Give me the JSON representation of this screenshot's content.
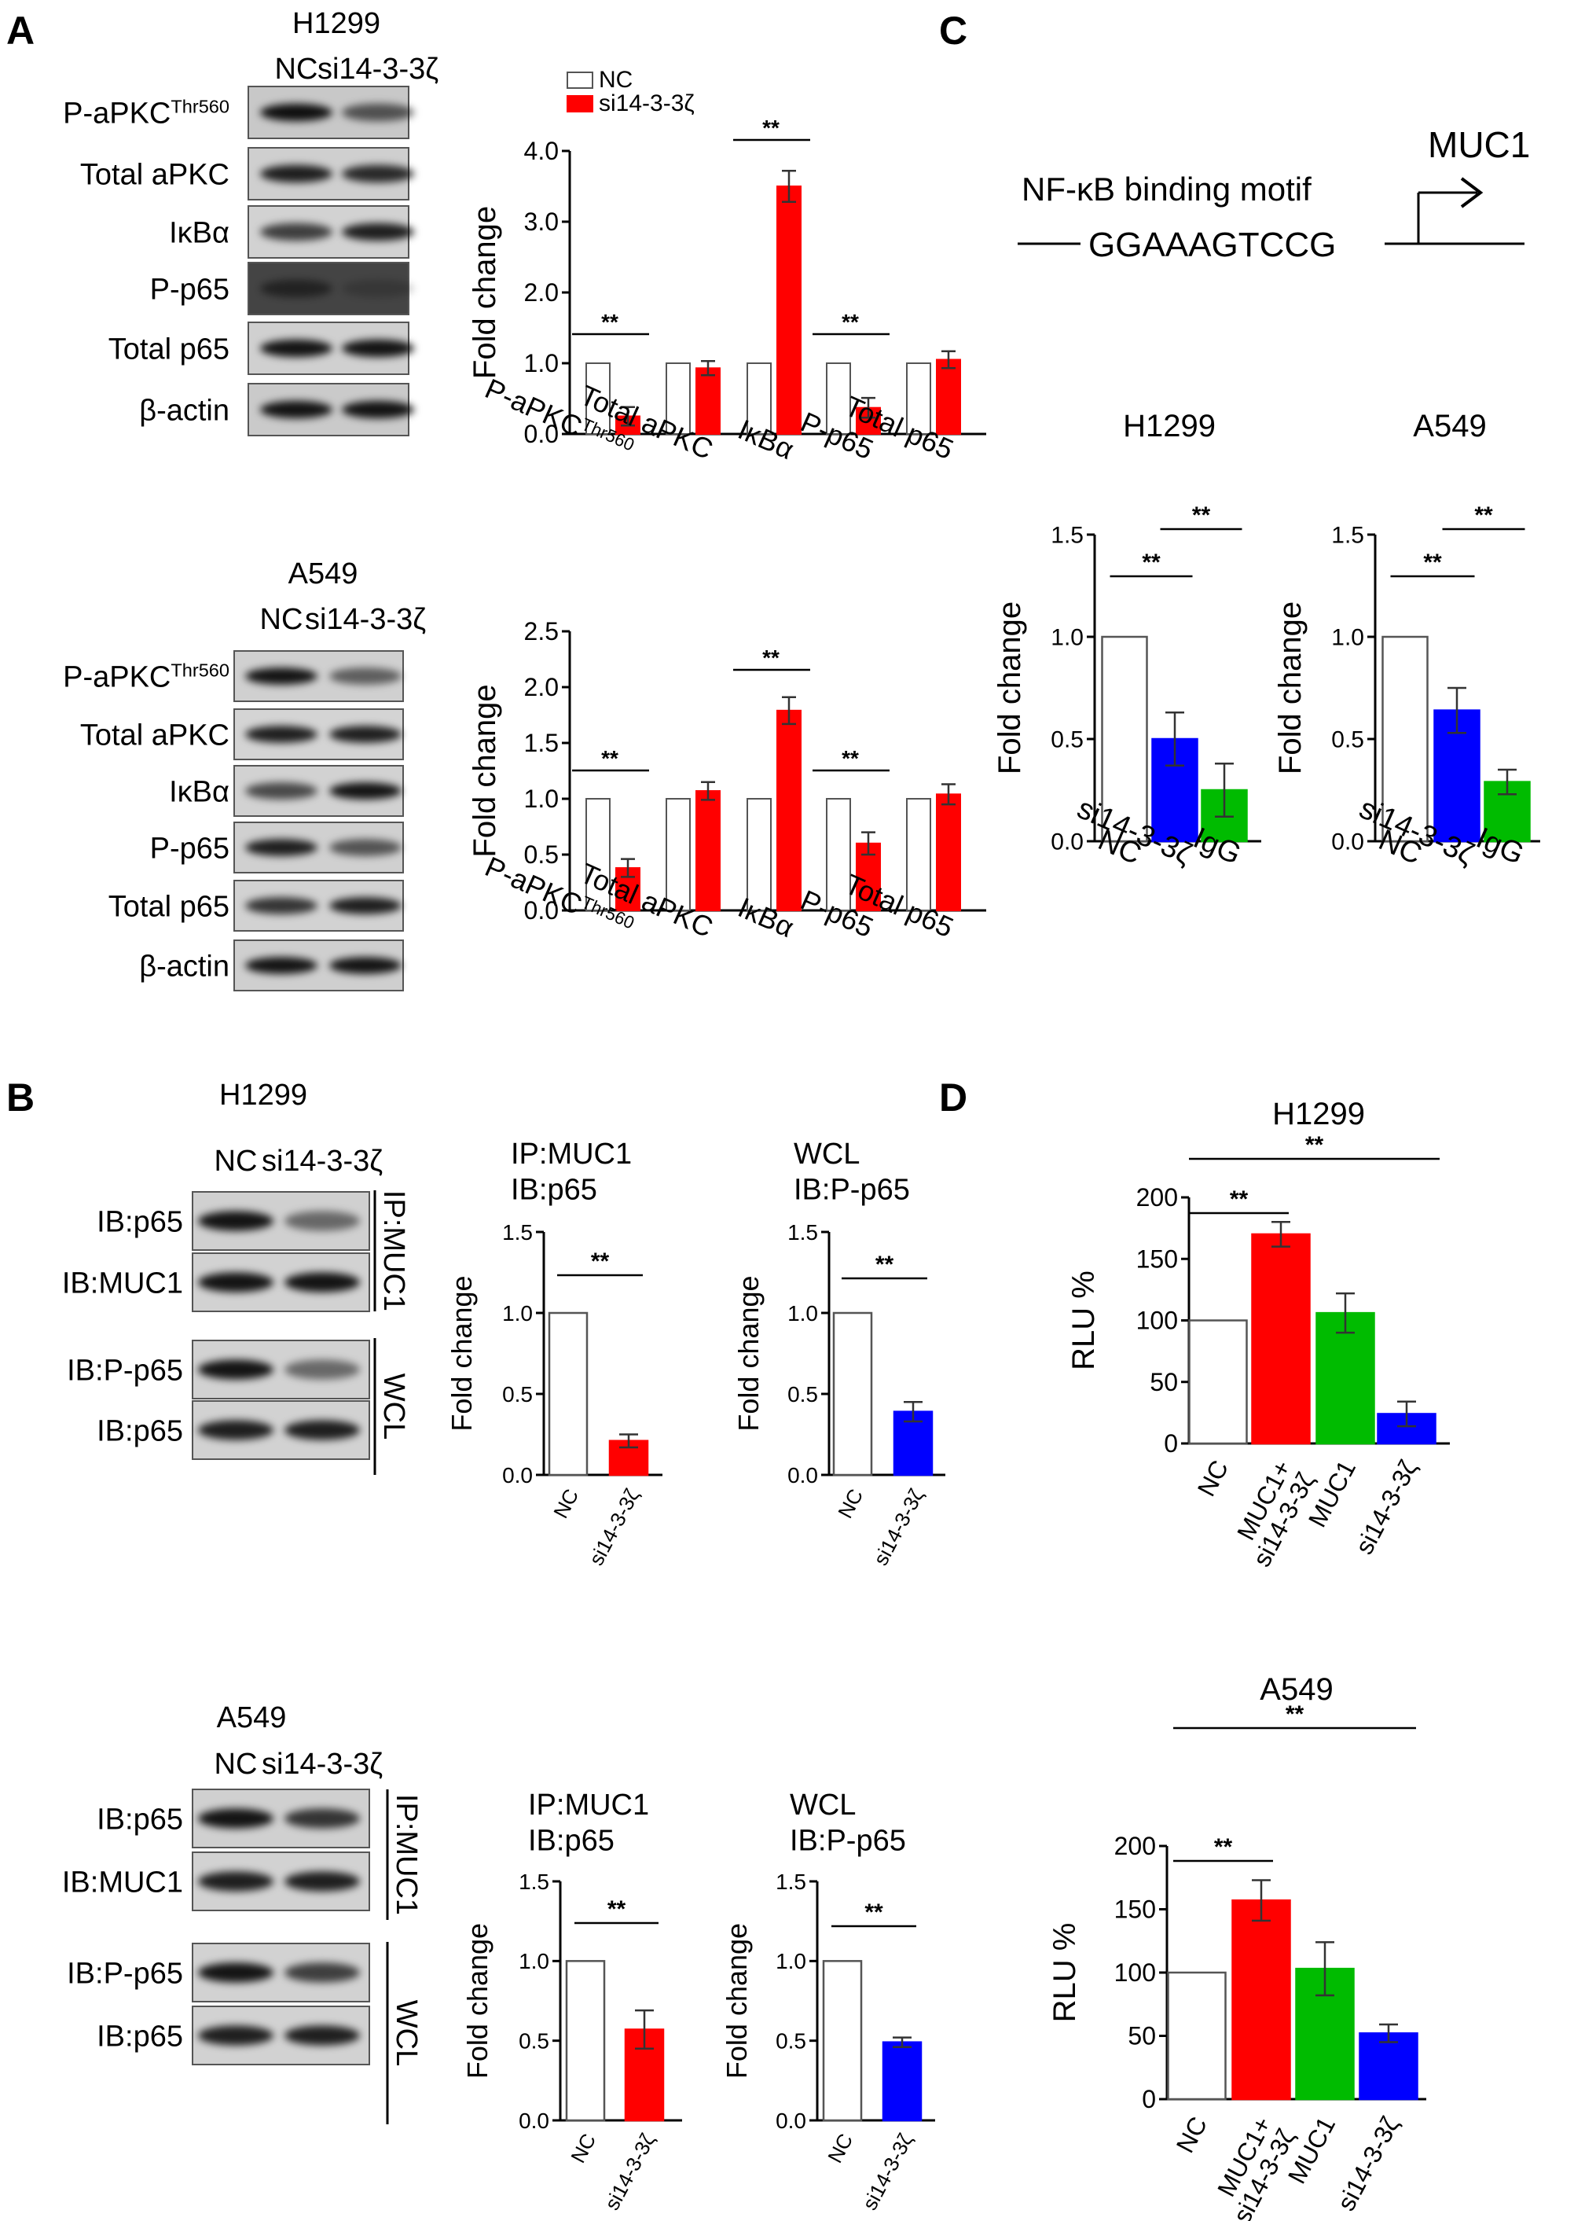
{
  "panels": {
    "A": {
      "label": "A",
      "blots": [
        {
          "cell_line": "H1299",
          "lanes": [
            "NC",
            "si14-3-3ζ"
          ],
          "rows": [
            {
              "label": "P-aPKC",
              "sup": "Thr560"
            },
            {
              "label": "Total aPKC",
              "sup": ""
            },
            {
              "label": "IκBα",
              "sup": ""
            },
            {
              "label": "P-p65",
              "sup": ""
            },
            {
              "label": "Total p65",
              "sup": ""
            },
            {
              "label": "β-actin",
              "sup": ""
            }
          ]
        },
        {
          "cell_line": "A549",
          "lanes": [
            "NC",
            "si14-3-3ζ"
          ],
          "rows": [
            {
              "label": "P-aPKC",
              "sup": "Thr560"
            },
            {
              "label": "Total aPKC",
              "sup": ""
            },
            {
              "label": "IκBα",
              "sup": ""
            },
            {
              "label": "P-p65",
              "sup": ""
            },
            {
              "label": "Total p65",
              "sup": ""
            },
            {
              "label": "β-actin",
              "sup": ""
            }
          ]
        }
      ]
    },
    "B": {
      "label": "B",
      "blots": [
        {
          "cell_line": "H1299",
          "lanes": [
            "NC",
            "si14-3-3ζ"
          ],
          "rows": [
            "IB:p65",
            "IB:MUC1",
            "IB:P-p65",
            "IB:p65"
          ],
          "groups": [
            "IP:MUC1",
            "WCL"
          ]
        },
        {
          "cell_line": "A549",
          "lanes": [
            "NC",
            "si14-3-3ζ"
          ],
          "rows": [
            "IB:p65",
            "IB:MUC1",
            "IB:P-p65",
            "IB:p65"
          ],
          "groups": [
            "IP:MUC1",
            "WCL"
          ]
        }
      ]
    },
    "C": {
      "label": "C",
      "motif_label": "NF-κB binding motif",
      "motif_seq": "GGAAAGTCCG",
      "gene": "MUC1"
    },
    "D": {
      "label": "D"
    }
  },
  "chart_data": [
    {
      "id": "A-H1299",
      "type": "bar",
      "legend": [
        "NC",
        "si14-3-3ζ"
      ],
      "legend_position": "top-left",
      "ylabel": "Fold change",
      "ylim": [
        0,
        4.0
      ],
      "yticks": [
        "0.0",
        "1.0",
        "2.0",
        "3.0",
        "4.0"
      ],
      "categories": [
        {
          "main": "P-aPKC",
          "sup": "Thr560"
        },
        {
          "main": "Total aPKC",
          "sup": ""
        },
        {
          "main": "IκBα",
          "sup": ""
        },
        {
          "main": "P-p65",
          "sup": ""
        },
        {
          "main": "Total p65",
          "sup": ""
        }
      ],
      "series": [
        {
          "name": "NC",
          "color": "#ffffff",
          "values": [
            1.0,
            1.0,
            1.0,
            1.0,
            1.0
          ],
          "errors": [
            0,
            0,
            0,
            0,
            0
          ]
        },
        {
          "name": "si14-3-3ζ",
          "color": "#ff0000",
          "values": [
            0.25,
            0.93,
            3.5,
            0.37,
            1.05
          ],
          "errors": [
            0.13,
            0.1,
            0.22,
            0.14,
            0.12
          ]
        }
      ],
      "significance": [
        {
          "category": 0,
          "label": "**"
        },
        {
          "category": 2,
          "label": "**"
        },
        {
          "category": 3,
          "label": "**"
        }
      ]
    },
    {
      "id": "A-A549",
      "type": "bar",
      "ylabel": "Fold change",
      "ylim": [
        0,
        2.5
      ],
      "yticks": [
        "0.0",
        "0.5",
        "1.0",
        "1.5",
        "2.0",
        "2.5"
      ],
      "categories": [
        {
          "main": "P-aPKC",
          "sup": "Thr560"
        },
        {
          "main": "Total aPKC",
          "sup": ""
        },
        {
          "main": "IκBα",
          "sup": ""
        },
        {
          "main": "P-p65",
          "sup": ""
        },
        {
          "main": "Total p65",
          "sup": ""
        }
      ],
      "series": [
        {
          "name": "NC",
          "color": "#ffffff",
          "values": [
            1.0,
            1.0,
            1.0,
            1.0,
            1.0
          ],
          "errors": [
            0,
            0,
            0,
            0,
            0
          ]
        },
        {
          "name": "si14-3-3ζ",
          "color": "#ff0000",
          "values": [
            0.38,
            1.07,
            1.79,
            0.6,
            1.04
          ],
          "errors": [
            0.08,
            0.08,
            0.12,
            0.1,
            0.09
          ]
        }
      ],
      "significance": [
        {
          "category": 0,
          "label": "**"
        },
        {
          "category": 2,
          "label": "**"
        },
        {
          "category": 3,
          "label": "**"
        }
      ]
    },
    {
      "id": "B-H1299-IP",
      "type": "bar",
      "title": [
        "IP:MUC1",
        "IB:p65"
      ],
      "ylabel": "Fold change",
      "ylim": [
        0,
        1.5
      ],
      "yticks": [
        "0.0",
        "0.5",
        "1.0",
        "1.5"
      ],
      "categories": [
        "NC",
        "si14-3-3ζ"
      ],
      "values": [
        1.0,
        0.21
      ],
      "errors": [
        0,
        0.04
      ],
      "colors": [
        "#ffffff",
        "#ff0000"
      ],
      "significance": [
        {
          "from": 0,
          "to": 1,
          "label": "**"
        }
      ]
    },
    {
      "id": "B-H1299-WCL",
      "type": "bar",
      "title": [
        "WCL",
        "IB:P-p65"
      ],
      "ylabel": "Fold change",
      "ylim": [
        0,
        1.5
      ],
      "yticks": [
        "0.0",
        "0.5",
        "1.0",
        "1.5"
      ],
      "categories": [
        "NC",
        "si14-3-3ζ"
      ],
      "values": [
        1.0,
        0.39
      ],
      "errors": [
        0,
        0.06
      ],
      "colors": [
        "#ffffff",
        "#0000ff"
      ],
      "significance": [
        {
          "from": 0,
          "to": 1,
          "label": "**"
        }
      ]
    },
    {
      "id": "B-A549-IP",
      "type": "bar",
      "title": [
        "IP:MUC1",
        "IB:p65"
      ],
      "ylabel": "Fold change",
      "ylim": [
        0,
        1.5
      ],
      "yticks": [
        "0.0",
        "0.5",
        "1.0",
        "1.5"
      ],
      "categories": [
        "NC",
        "si14-3-3ζ"
      ],
      "values": [
        1.0,
        0.57
      ],
      "errors": [
        0,
        0.12
      ],
      "colors": [
        "#ffffff",
        "#ff0000"
      ],
      "significance": [
        {
          "from": 0,
          "to": 1,
          "label": "**"
        }
      ]
    },
    {
      "id": "B-A549-WCL",
      "type": "bar",
      "title": [
        "WCL",
        "IB:P-p65"
      ],
      "ylabel": "Fold change",
      "ylim": [
        0,
        1.5
      ],
      "yticks": [
        "0.0",
        "0.5",
        "1.0",
        "1.5"
      ],
      "categories": [
        "NC",
        "si14-3-3ζ"
      ],
      "values": [
        1.0,
        0.49
      ],
      "errors": [
        0,
        0.03
      ],
      "colors": [
        "#ffffff",
        "#0000ff"
      ],
      "significance": [
        {
          "from": 0,
          "to": 1,
          "label": "**"
        }
      ]
    },
    {
      "id": "C-H1299",
      "type": "bar",
      "title": [
        "H1299"
      ],
      "ylabel": "Fold change",
      "ylim": [
        0,
        1.5
      ],
      "yticks": [
        "0.0",
        "0.5",
        "1.0",
        "1.5"
      ],
      "categories": [
        "NC",
        "si14-3-3ζ",
        "IgG"
      ],
      "values": [
        1.0,
        0.5,
        0.25
      ],
      "errors": [
        0,
        0.13,
        0.13
      ],
      "colors": [
        "#ffffff",
        "#0000ff",
        "#00bb00"
      ],
      "significance": [
        {
          "from": 0,
          "to": 1,
          "label": "**"
        },
        {
          "from": 1,
          "to": 2,
          "label": "**"
        }
      ]
    },
    {
      "id": "C-A549",
      "type": "bar",
      "title": [
        "A549"
      ],
      "ylabel": "Fold change",
      "ylim": [
        0,
        1.5
      ],
      "yticks": [
        "0.0",
        "0.5",
        "1.0",
        "1.5"
      ],
      "categories": [
        "NC",
        "si14-3-3ζ",
        "IgG"
      ],
      "values": [
        1.0,
        0.64,
        0.29
      ],
      "errors": [
        0,
        0.11,
        0.06
      ],
      "colors": [
        "#ffffff",
        "#0000ff",
        "#00bb00"
      ],
      "significance": [
        {
          "from": 0,
          "to": 1,
          "label": "**"
        },
        {
          "from": 1,
          "to": 2,
          "label": "**"
        }
      ]
    },
    {
      "id": "D-H1299",
      "type": "bar",
      "title": [
        "H1299"
      ],
      "ylabel": "RLU %",
      "ylim": [
        0,
        200
      ],
      "yticks": [
        "0",
        "50",
        "100",
        "150",
        "200"
      ],
      "categories": [
        "NC",
        "MUC1+\nsi14-3-3ζ",
        "MUC1",
        "si14-3-3ζ"
      ],
      "values": [
        100,
        170,
        106,
        24
      ],
      "errors": [
        0,
        10,
        16,
        10
      ],
      "colors": [
        "#ffffff",
        "#ff0000",
        "#00bb00",
        "#0000ff"
      ],
      "significance": [
        {
          "from": 0,
          "to": 1,
          "label": "**"
        },
        {
          "from": 0,
          "to": 3,
          "label": "**"
        }
      ]
    },
    {
      "id": "D-A549",
      "type": "bar",
      "title": [
        "A549"
      ],
      "ylabel": "RLU %",
      "ylim": [
        0,
        200
      ],
      "yticks": [
        "0",
        "50",
        "100",
        "150",
        "200"
      ],
      "categories": [
        "NC",
        "MUC1+\nsi14-3-3ζ",
        "MUC1",
        "si14-3-3ζ"
      ],
      "values": [
        100,
        157,
        103,
        52
      ],
      "errors": [
        0,
        16,
        21,
        7
      ],
      "colors": [
        "#ffffff",
        "#ff0000",
        "#00bb00",
        "#0000ff"
      ],
      "significance": [
        {
          "from": 0,
          "to": 1,
          "label": "**"
        },
        {
          "from": 0,
          "to": 3,
          "label": "**"
        }
      ]
    }
  ]
}
